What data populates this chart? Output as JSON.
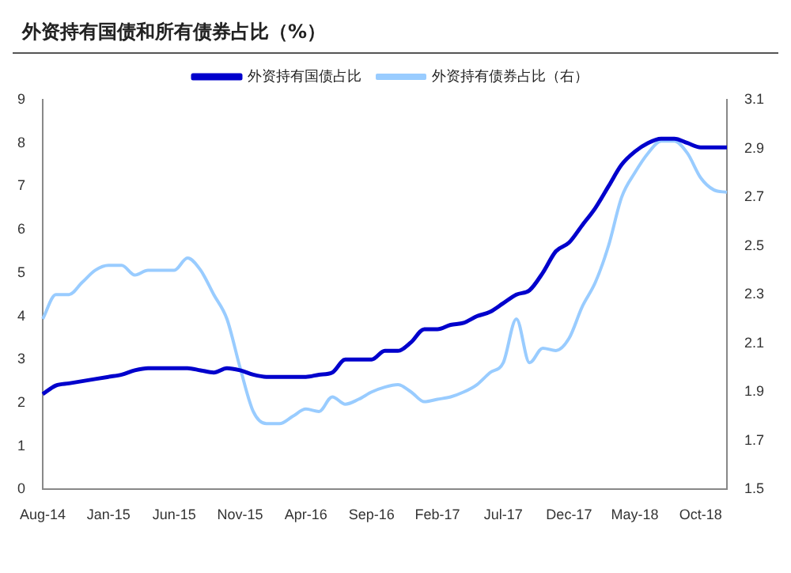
{
  "chart_data": {
    "type": "line",
    "title": "外资持有国债和所有债券占比（%）",
    "categories": [
      "Aug-14",
      null,
      null,
      null,
      null,
      "Jan-15",
      null,
      null,
      null,
      null,
      "Jun-15",
      null,
      null,
      null,
      null,
      "Nov-15",
      null,
      null,
      null,
      null,
      "Apr-16",
      null,
      null,
      null,
      null,
      "Sep-16",
      null,
      null,
      null,
      null,
      "Feb-17",
      null,
      null,
      null,
      null,
      "Jul-17",
      null,
      null,
      null,
      null,
      "Dec-17",
      null,
      null,
      null,
      null,
      "May-18",
      null,
      null,
      null,
      null,
      "Oct-18",
      null,
      null
    ],
    "series": [
      {
        "name": "外资持有国债占比",
        "color": "#0000cc",
        "values": [
          2.2,
          2.4,
          2.45,
          2.5,
          2.55,
          2.6,
          2.65,
          2.75,
          2.8,
          2.8,
          2.8,
          2.8,
          2.75,
          2.7,
          2.8,
          2.75,
          2.65,
          2.6,
          2.6,
          2.6,
          2.6,
          2.65,
          2.7,
          3.0,
          3.0,
          3.0,
          3.2,
          3.2,
          3.4,
          3.7,
          3.7,
          3.8,
          3.85,
          4.0,
          4.1,
          4.3,
          4.5,
          4.6,
          5.0,
          5.5,
          5.7,
          6.1,
          6.5,
          7.0,
          7.5,
          7.8,
          8.0,
          8.1,
          8.1,
          8.0,
          7.9,
          7.9,
          7.9
        ]
      },
      {
        "name": "外资持有债券占比（右）",
        "color": "#99ccff",
        "axis": "y2",
        "values": [
          2.2,
          2.3,
          2.3,
          2.35,
          2.4,
          2.42,
          2.42,
          2.38,
          2.4,
          2.4,
          2.4,
          2.45,
          2.4,
          2.3,
          2.2,
          2.0,
          1.82,
          1.77,
          1.77,
          1.8,
          1.83,
          1.82,
          1.88,
          1.85,
          1.87,
          1.9,
          1.92,
          1.93,
          1.9,
          1.86,
          1.87,
          1.88,
          1.9,
          1.93,
          1.98,
          2.02,
          2.2,
          2.02,
          2.08,
          2.07,
          2.12,
          2.25,
          2.35,
          2.5,
          2.7,
          2.8,
          2.88,
          2.93,
          2.93,
          2.88,
          2.78,
          2.73,
          2.72
        ]
      }
    ],
    "ylim": [
      0,
      9
    ],
    "yticks": [
      0,
      1,
      2,
      3,
      4,
      5,
      6,
      7,
      8,
      9
    ],
    "y2lim": [
      1.5,
      3.1
    ],
    "y2ticks": [
      1.5,
      1.7,
      1.9,
      2.1,
      2.3,
      2.5,
      2.7,
      2.9,
      3.1
    ],
    "legend": "top"
  }
}
